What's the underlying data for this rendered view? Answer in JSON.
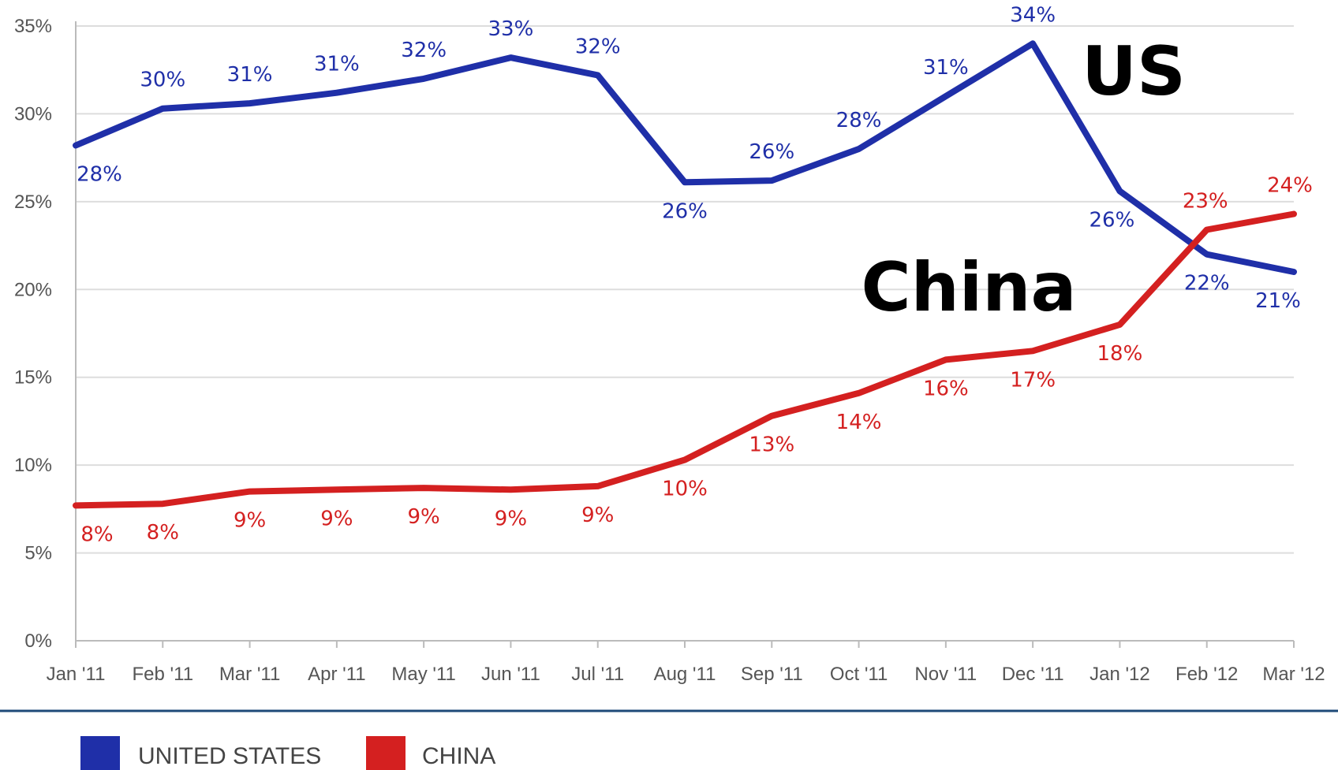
{
  "chart_data": {
    "type": "line",
    "categories": [
      "Jan '11",
      "Feb '11",
      "Mar '11",
      "Apr '11",
      "May '11",
      "Jun '11",
      "Jul '11",
      "Aug '11",
      "Sep '11",
      "Oct '11",
      "Nov '11",
      "Dec '11",
      "Jan '12",
      "Feb '12",
      "Mar '12"
    ],
    "yticks": [
      "0%",
      "5%",
      "10%",
      "15%",
      "20%",
      "25%",
      "30%",
      "35%"
    ],
    "ylim": [
      0,
      35
    ],
    "grid": true,
    "legend_position": "bottom-left",
    "series": [
      {
        "name": "UNITED STATES",
        "color": "#1f2fa8",
        "values": [
          28.2,
          30.3,
          30.6,
          31.2,
          32.0,
          33.2,
          32.2,
          26.1,
          26.2,
          28.0,
          31.0,
          34.0,
          25.6,
          22.0,
          21.0
        ],
        "labels": [
          "28%",
          "30%",
          "31%",
          "31%",
          "32%",
          "33%",
          "32%",
          "26%",
          "26%",
          "28%",
          "31%",
          "34%",
          "26%",
          "22%",
          "21%"
        ]
      },
      {
        "name": "CHINA",
        "color": "#d42020",
        "values": [
          7.7,
          7.8,
          8.5,
          8.6,
          8.7,
          8.6,
          8.8,
          10.3,
          12.8,
          14.1,
          16.0,
          16.5,
          18.0,
          23.4,
          24.3
        ],
        "labels": [
          "8%",
          "8%",
          "9%",
          "9%",
          "9%",
          "9%",
          "9%",
          "10%",
          "13%",
          "14%",
          "16%",
          "17%",
          "18%",
          "23%",
          "24%"
        ]
      }
    ],
    "annotations": [
      "US",
      "China"
    ]
  }
}
